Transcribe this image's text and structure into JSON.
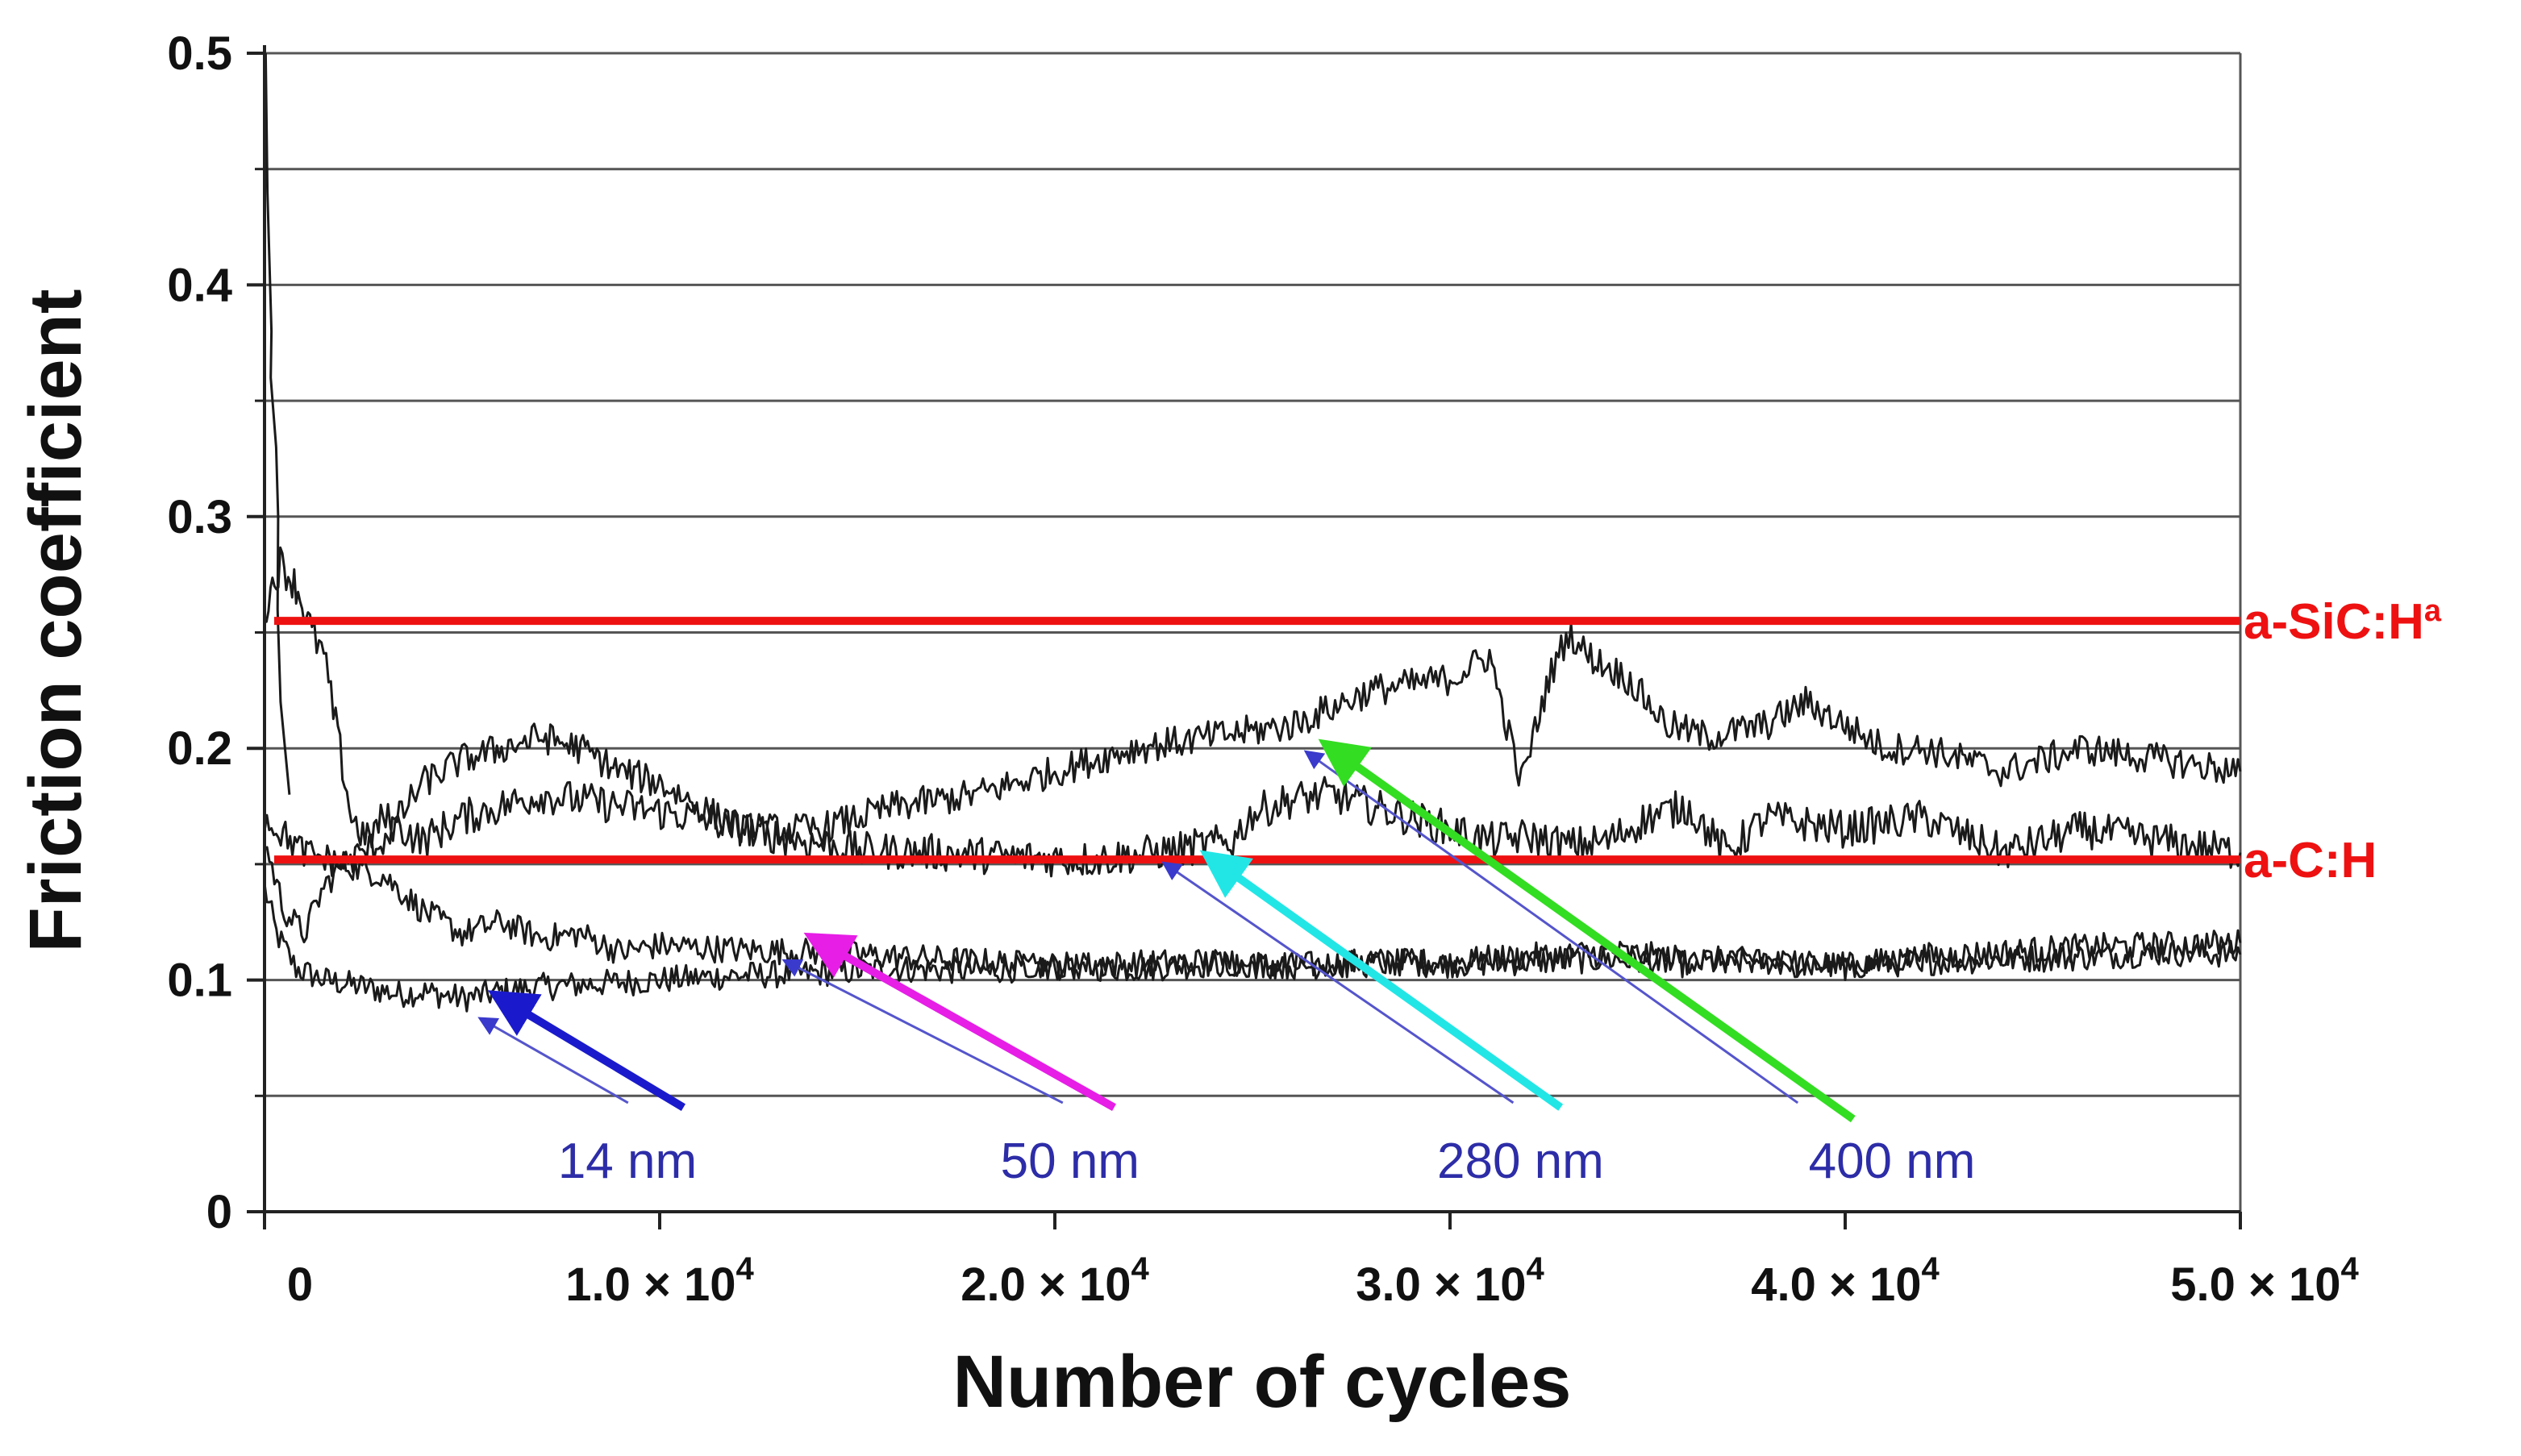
{
  "chart_data": {
    "type": "line",
    "title": "",
    "xlabel": "Number of cycles",
    "ylabel": "Friction coefficient",
    "xlim": [
      0,
      50000
    ],
    "ylim": [
      0,
      0.5
    ],
    "grid": true,
    "y_ticks": [
      {
        "value": 0,
        "label": "0"
      },
      {
        "value": 0.1,
        "label": "0.1"
      },
      {
        "value": 0.2,
        "label": "0.2"
      },
      {
        "value": 0.3,
        "label": "0.3"
      },
      {
        "value": 0.4,
        "label": "0.4"
      },
      {
        "value": 0.5,
        "label": "0.5"
      }
    ],
    "x_ticks": [
      {
        "value": 0,
        "label": "0",
        "exp": ""
      },
      {
        "value": 10000,
        "label": "1.0 × 10",
        "exp": "4"
      },
      {
        "value": 20000,
        "label": "2.0 × 10",
        "exp": "4"
      },
      {
        "value": 30000,
        "label": "3.0 × 10",
        "exp": "4"
      },
      {
        "value": 40000,
        "label": "4.0 × 10",
        "exp": "4"
      },
      {
        "value": 50000,
        "label": "5.0 × 10",
        "exp": "4"
      }
    ],
    "reference_lines": [
      {
        "name": "a-SiC:H",
        "sup": "a",
        "y": 0.255,
        "color": "#ee1111"
      },
      {
        "name": "a-C:H",
        "sup": "",
        "y": 0.152,
        "color": "#ee1111"
      }
    ],
    "series": [
      {
        "name": "14 nm",
        "color": "#1a1a1a",
        "x": [
          0,
          300,
          800,
          1500,
          2200,
          2800,
          3400,
          4000,
          5000,
          6000,
          7000,
          8000,
          10000,
          12000,
          14000,
          16000,
          18000,
          20000,
          22000,
          24000,
          26000,
          28000,
          30000,
          32000,
          34000,
          36000,
          38000,
          40000,
          42000,
          44000,
          46000,
          48000,
          50000
        ],
        "y": [
          0.14,
          0.12,
          0.105,
          0.1,
          0.098,
          0.096,
          0.094,
          0.095,
          0.092,
          0.095,
          0.097,
          0.098,
          0.1,
          0.102,
          0.103,
          0.105,
          0.104,
          0.106,
          0.105,
          0.107,
          0.106,
          0.108,
          0.107,
          0.108,
          0.109,
          0.107,
          0.108,
          0.106,
          0.108,
          0.109,
          0.11,
          0.112,
          0.111
        ]
      },
      {
        "name": "50 nm",
        "color": "#1a1a1a",
        "x": [
          0,
          500,
          1000,
          1500,
          2000,
          3000,
          4000,
          5000,
          6000,
          7000,
          8000,
          9000,
          10000,
          12000,
          14000,
          16000,
          18000,
          20000,
          22000,
          24000,
          26000,
          28000,
          30000,
          32000,
          34000,
          36000,
          38000,
          40000,
          42000,
          44000,
          46000,
          48000,
          50000
        ],
        "y": [
          0.16,
          0.13,
          0.12,
          0.14,
          0.15,
          0.145,
          0.13,
          0.12,
          0.125,
          0.118,
          0.12,
          0.112,
          0.115,
          0.113,
          0.112,
          0.11,
          0.108,
          0.106,
          0.107,
          0.108,
          0.106,
          0.107,
          0.108,
          0.11,
          0.112,
          0.109,
          0.108,
          0.106,
          0.11,
          0.112,
          0.114,
          0.115,
          0.116
        ]
      },
      {
        "name": "280 nm",
        "color": "#1a1a1a",
        "x": [
          0,
          200,
          400,
          600,
          800,
          1000,
          1200,
          1500,
          1800,
          2200,
          2600,
          3000,
          3500,
          4000,
          5000,
          7000,
          9000,
          11000,
          13000,
          15000,
          17000,
          19000,
          21000,
          23000,
          24500,
          25000,
          26000,
          27000,
          28000,
          29000,
          30000,
          31000,
          32000,
          33000,
          34000,
          35000,
          36000,
          37000,
          38000,
          40000,
          42000,
          44000,
          46000,
          48000,
          50000
        ],
        "y": [
          0.26,
          0.27,
          0.28,
          0.275,
          0.27,
          0.26,
          0.25,
          0.24,
          0.21,
          0.17,
          0.16,
          0.17,
          0.165,
          0.16,
          0.17,
          0.18,
          0.175,
          0.17,
          0.162,
          0.156,
          0.155,
          0.153,
          0.152,
          0.156,
          0.16,
          0.172,
          0.178,
          0.18,
          0.175,
          0.17,
          0.165,
          0.16,
          0.162,
          0.158,
          0.16,
          0.17,
          0.175,
          0.155,
          0.17,
          0.165,
          0.17,
          0.155,
          0.165,
          0.16,
          0.155
        ]
      },
      {
        "name": "400 nm",
        "color": "#1a1a1a",
        "x": [
          0,
          1000,
          2000,
          3000,
          4000,
          5000,
          6000,
          7000,
          8000,
          9000,
          10000,
          11000,
          12000,
          14000,
          16000,
          18000,
          20000,
          22000,
          24000,
          26000,
          28000,
          30000,
          31000,
          31800,
          32500,
          33000,
          33500,
          34500,
          35500,
          36500,
          38000,
          39000,
          40000,
          41000,
          42000,
          44000,
          46000,
          48000,
          50000
        ],
        "y": [
          0.17,
          0.155,
          0.15,
          0.16,
          0.185,
          0.195,
          0.2,
          0.205,
          0.2,
          0.19,
          0.185,
          0.175,
          0.165,
          0.165,
          0.175,
          0.18,
          0.19,
          0.2,
          0.205,
          0.21,
          0.225,
          0.23,
          0.24,
          0.185,
          0.23,
          0.25,
          0.24,
          0.23,
          0.21,
          0.205,
          0.21,
          0.22,
          0.21,
          0.2,
          0.2,
          0.19,
          0.2,
          0.195,
          0.19
        ]
      }
    ],
    "initial_spike": {
      "x": [
        0,
        60,
        120,
        180,
        240,
        300,
        360,
        450,
        600
      ],
      "y": [
        0.5,
        0.44,
        0.38,
        0.36,
        0.33,
        0.3,
        0.26,
        0.22,
        0.18
      ]
    },
    "annotations": [
      {
        "label": "14 nm",
        "color": "#1a1acc",
        "label_color": "#2d2da8",
        "from": [
          10600,
          0.045
        ],
        "to": [
          6000,
          0.092
        ],
        "thin_from": [
          9200,
          0.047
        ],
        "thin_to": [
          5500,
          0.083
        ],
        "text_at": [
          10000,
          0.03
        ]
      },
      {
        "label": "50 nm",
        "color": "#e61ee6",
        "label_color": "#2d2da8",
        "from": [
          21500,
          0.045
        ],
        "to": [
          14000,
          0.117
        ],
        "thin_from": [
          20200,
          0.047
        ],
        "thin_to": [
          13200,
          0.108
        ],
        "text_at": [
          21200,
          0.03
        ]
      },
      {
        "label": "280 nm",
        "color": "#22e6e6",
        "label_color": "#2d2da8",
        "from": [
          32800,
          0.045
        ],
        "to": [
          24000,
          0.152
        ],
        "thin_from": [
          31600,
          0.047
        ],
        "thin_to": [
          22800,
          0.15
        ],
        "text_at": [
          32600,
          0.03
        ]
      },
      {
        "label": "400 nm",
        "color": "#33dd22",
        "label_color": "#2d2da8",
        "from": [
          40200,
          0.04
        ],
        "to": [
          27000,
          0.2
        ],
        "thin_from": [
          38800,
          0.047
        ],
        "thin_to": [
          26400,
          0.198
        ],
        "text_at": [
          42000,
          0.03
        ]
      }
    ]
  }
}
